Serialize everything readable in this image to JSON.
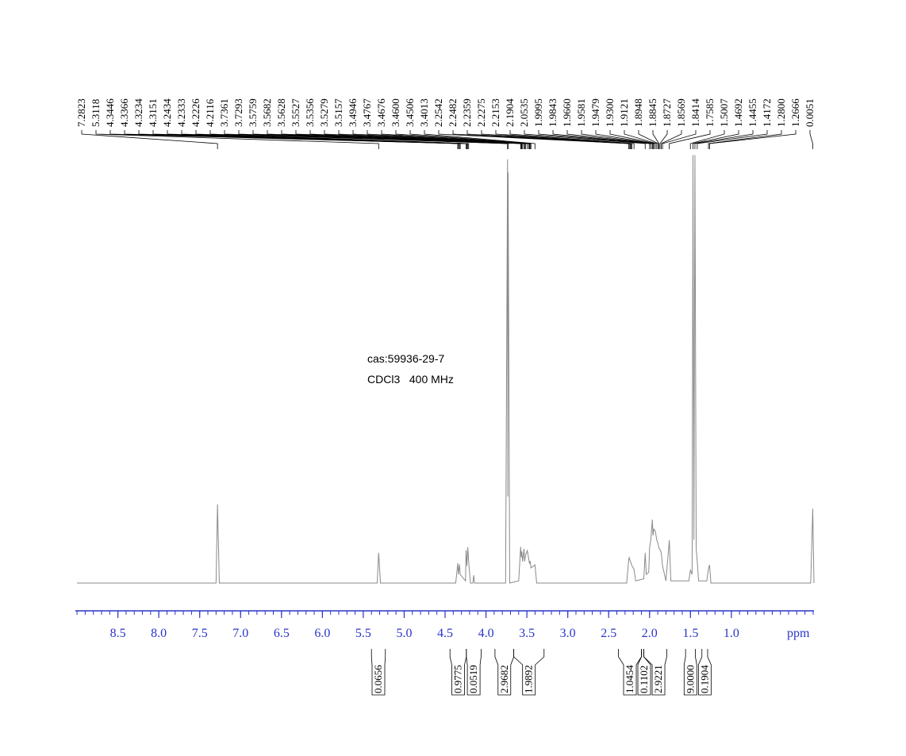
{
  "chart_data": {
    "type": "line",
    "annotations": [
      "cas:59936-29-7",
      "CDCl3   400 MHz"
    ],
    "xlabel": "ppm",
    "xlim": [
      9.02,
      -0.01
    ],
    "ylim": [
      0,
      100
    ],
    "xticks": [
      {
        "value": 8.5,
        "label": "8.5"
      },
      {
        "value": 8,
        "label": "8.0"
      },
      {
        "value": 7.5,
        "label": "7.5"
      },
      {
        "value": 7,
        "label": "7.0"
      },
      {
        "value": 6.5,
        "label": "6.5"
      },
      {
        "value": 6,
        "label": "6.0"
      },
      {
        "value": 5.5,
        "label": "5.5"
      },
      {
        "value": 5,
        "label": "5.0"
      },
      {
        "value": 4.5,
        "label": "4.5"
      },
      {
        "value": 4,
        "label": "4.0"
      },
      {
        "value": 3.5,
        "label": "3.5"
      },
      {
        "value": 3,
        "label": "3.0"
      },
      {
        "value": 2.5,
        "label": "2.5"
      },
      {
        "value": 2,
        "label": "2.0"
      },
      {
        "value": 1.5,
        "label": "1.5"
      },
      {
        "value": 1,
        "label": "1.0"
      }
    ],
    "minor_tick_step": 0.1,
    "color": "#8a8a8a",
    "axis_color": "#2a35c8",
    "x": [
      9.0,
      7.3,
      7.2823,
      7.26,
      5.33,
      5.3118,
      5.29,
      4.37,
      4.3446,
      4.3366,
      4.3234,
      4.3151,
      4.25,
      4.2434,
      4.2333,
      4.2226,
      4.2116,
      4.19,
      4.16,
      4.15,
      4.14,
      3.76,
      3.7361,
      3.733,
      3.7293,
      3.71,
      3.6,
      3.5759,
      3.5682,
      3.5628,
      3.5527,
      3.5356,
      3.5279,
      3.5157,
      3.4946,
      3.4767,
      3.4676,
      3.46,
      3.4506,
      3.4013,
      3.38,
      2.28,
      2.2542,
      2.2482,
      2.2359,
      2.2275,
      2.2153,
      2.1904,
      2.17,
      2.07,
      2.0535,
      2.04,
      2.01,
      1.9995,
      1.9843,
      1.966,
      1.9581,
      1.9479,
      1.93,
      1.9121,
      1.8948,
      1.8845,
      1.8727,
      1.8569,
      1.8414,
      1.8,
      1.7585,
      1.74,
      1.52,
      1.5007,
      1.48,
      1.4692,
      1.458,
      1.4455,
      1.43,
      1.4172,
      1.4,
      1.3,
      1.28,
      1.2666,
      1.25,
      0.03,
      0.0051,
      -0.01
    ],
    "values": [
      0,
      0,
      18.2,
      0,
      0,
      7.0,
      0,
      0,
      4.6,
      2,
      4.3,
      2,
      0.5,
      7.6,
      4,
      8.3,
      5,
      0,
      0,
      1.8,
      0,
      0,
      98,
      20,
      95,
      0,
      0.5,
      8.4,
      6,
      7.3,
      5,
      7.9,
      5,
      6.5,
      7.5,
      5.5,
      4.5,
      5.1,
      3.5,
      4.2,
      0,
      0,
      5.5,
      5.9,
      5,
      4.7,
      4,
      3.2,
      0.5,
      1,
      7.0,
      2,
      2.5,
      8.3,
      10,
      14.7,
      11,
      12.5,
      12,
      10,
      9,
      8,
      7.8,
      7,
      4,
      0.5,
      9.9,
      0.5,
      0.5,
      3,
      2,
      99,
      10,
      99,
      8,
      5,
      0.5,
      0.5,
      3.3,
      4.2,
      0,
      0,
      17.2,
      0
    ],
    "peak_labels": [
      7.2823,
      5.3118,
      4.3446,
      4.3366,
      4.3234,
      4.3151,
      4.2434,
      4.2333,
      4.2226,
      4.2116,
      3.7361,
      3.7293,
      3.5759,
      3.5682,
      3.5628,
      3.5527,
      3.5356,
      3.5279,
      3.5157,
      3.4946,
      3.4767,
      3.4676,
      {
        "value": 3.46,
        "label": "3.4600"
      },
      3.4506,
      3.4013,
      2.2542,
      2.2482,
      2.2359,
      2.2275,
      2.2153,
      2.1904,
      2.0535,
      1.9995,
      1.9843,
      {
        "value": 1.966,
        "label": "1.9660"
      },
      1.9581,
      1.9479,
      {
        "value": 1.93,
        "label": "1.9300"
      },
      1.9121,
      1.8948,
      1.8845,
      1.8727,
      1.8569,
      1.8414,
      1.7585,
      1.5007,
      1.4692,
      1.4455,
      1.4172,
      {
        "value": 1.28,
        "label": "1.2800"
      },
      1.2666,
      0.0051
    ],
    "integrals": [
      {
        "range": [
          5.4,
          5.23
        ],
        "value": 0.0656
      },
      {
        "range": [
          4.44,
          4.24
        ],
        "value": 0.9775
      },
      {
        "range": [
          4.24,
          4.06
        ],
        "value": 0.0519
      },
      {
        "range": [
          3.89,
          3.66
        ],
        "value": 2.9682
      },
      {
        "range": [
          3.66,
          3.29
        ],
        "value": 1.9892
      },
      {
        "range": [
          2.38,
          2.1
        ],
        "value": 1.0454
      },
      {
        "range": [
          2.1,
          2.07
        ],
        "value": 0.1102
      },
      {
        "range": [
          2.07,
          1.79
        ],
        "value": 2.9221
      },
      {
        "range": [
          1.56,
          1.44
        ],
        "value": {
          "value": 9,
          "label": "9.0000"
        }
      },
      {
        "range": [
          1.36,
          1.29
        ],
        "value": 0.1904
      }
    ]
  }
}
